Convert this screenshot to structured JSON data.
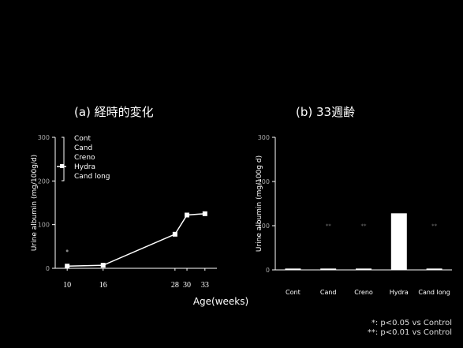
{
  "chart_data": [
    {
      "type": "line",
      "title": "(a)  経時的変化",
      "xlabel": "Age(weeks)",
      "ylabel": "Urine albumin (mg/100g/d)",
      "x": [
        10,
        16,
        28,
        30,
        33
      ],
      "ylim": [
        0,
        300
      ],
      "yticks": [
        "0",
        "100",
        "200",
        "300"
      ],
      "legend": [
        "Cont",
        "Cand",
        "Creno",
        "Hydra",
        "Cand long"
      ],
      "legend_placement": "top-left",
      "series": [
        {
          "name": "Hydra",
          "values": [
            5,
            7,
            78,
            122,
            125
          ]
        }
      ],
      "extra_points": [
        {
          "x": 10,
          "y": 40
        }
      ],
      "grid": false
    },
    {
      "type": "bar",
      "title": "(b) 33週齢",
      "ylabel": "Urine albumin (mg/100g d)",
      "categories": [
        "Cont",
        "Cand",
        "Creno",
        "Hydra",
        "Cand long"
      ],
      "values": [
        3,
        3,
        3,
        128,
        3
      ],
      "ylim": [
        0,
        300
      ],
      "yticks": [
        "0",
        "100",
        "200",
        "300"
      ],
      "annotations": [
        "",
        "**",
        "**",
        "",
        "**"
      ],
      "grid": false
    }
  ],
  "footnotes": [
    "*: p<0.05 vs Control",
    "**: p<0.01 vs Control"
  ]
}
